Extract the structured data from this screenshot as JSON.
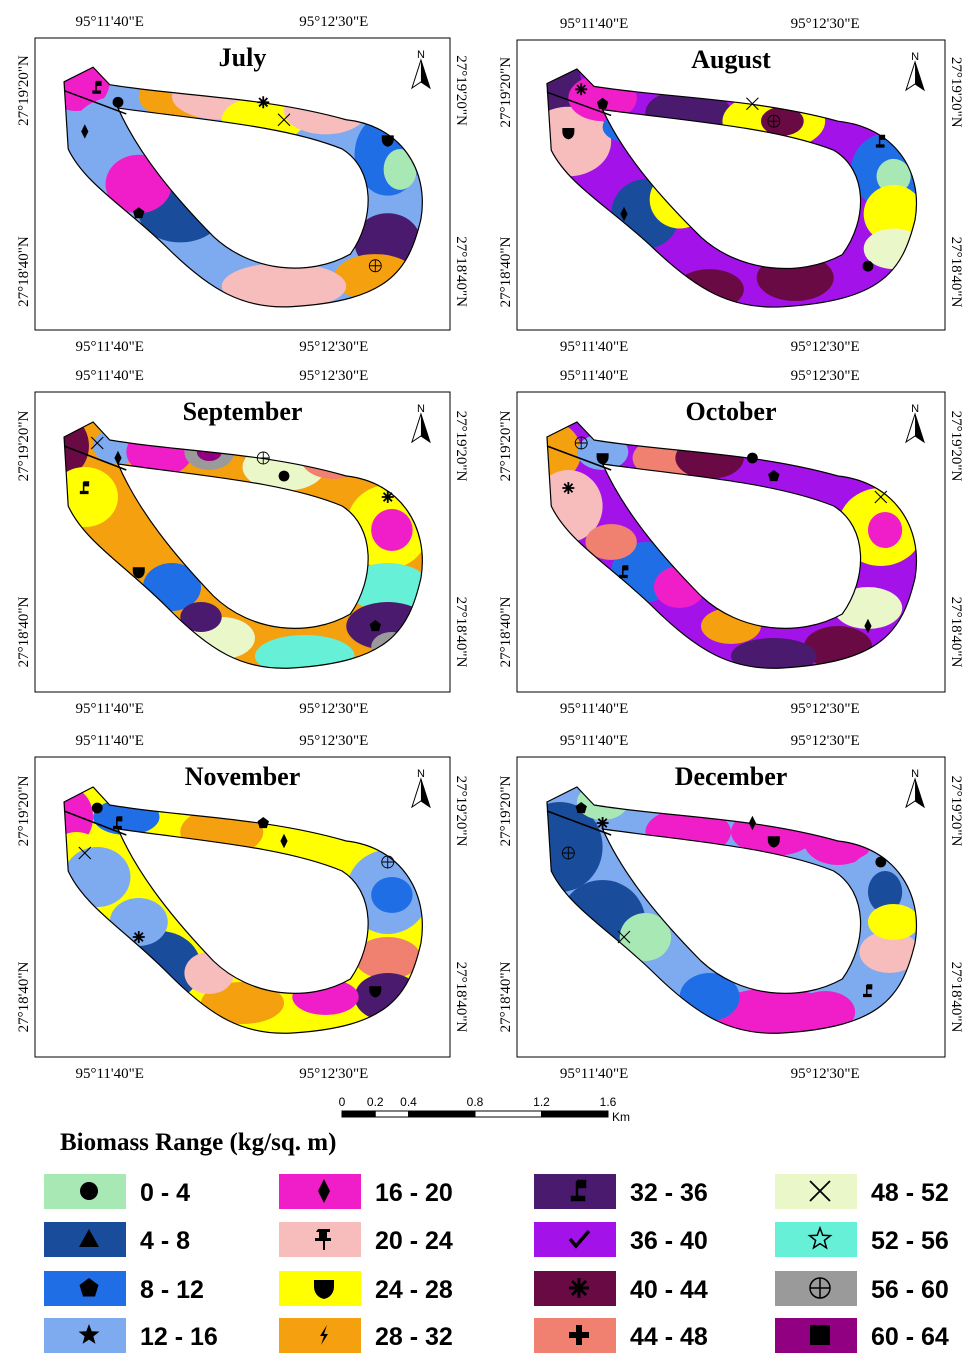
{
  "panels": [
    {
      "title": "July",
      "top_x_labels": [
        "95°11'40\"E",
        "95°12'30\"E"
      ],
      "bottom_x_labels": [
        "95°11'40\"E",
        "95°12'30\"E"
      ],
      "left_y_labels": [
        "27°19'20\"N",
        "27°18'40\"N"
      ],
      "right_y_labels": [
        "27°19'20\"N",
        "27°18'40\"N"
      ],
      "north": "N"
    },
    {
      "title": "August",
      "top_x_labels": [
        "95°11'40\"E",
        "95°12'30\"E"
      ],
      "bottom_x_labels": [
        "95°11'40\"E",
        "95°12'30\"E"
      ],
      "left_y_labels": [
        "27°19'20\"N",
        "27°18'40\"N"
      ],
      "right_y_labels": [
        "27°19'20\"N",
        "27°18'40\"N"
      ],
      "north": "N"
    },
    {
      "title": "September",
      "top_x_labels": [
        "95°11'40\"E",
        "95°12'30\"E"
      ],
      "bottom_x_labels": [
        "95°11'40\"E",
        "95°12'30\"E"
      ],
      "left_y_labels": [
        "27°19'20\"N",
        "27°18'40\"N"
      ],
      "right_y_labels": [
        "27°19'20\"N",
        "27°18'40\"N"
      ],
      "north": "N"
    },
    {
      "title": "October",
      "top_x_labels": [
        "95°11'40\"E",
        "95°12'30\"E"
      ],
      "bottom_x_labels": [
        "95°11'40\"E",
        "95°12'30\"E"
      ],
      "left_y_labels": [
        "27°19'20\"N",
        "27°18'40\"N"
      ],
      "right_y_labels": [
        "27°19'20\"N",
        "27°18'40\"N"
      ],
      "north": "N"
    },
    {
      "title": "November",
      "top_x_labels": [
        "95°11'40\"E",
        "95°12'30\"E"
      ],
      "bottom_x_labels": [
        "95°11'40\"E",
        "95°12'30\"E"
      ],
      "left_y_labels": [
        "27°19'20\"N",
        "27°18'40\"N"
      ],
      "right_y_labels": [
        "27°19'20\"N",
        "27°18'40\"N"
      ],
      "north": "N"
    },
    {
      "title": "December",
      "top_x_labels": [
        "95°11'40\"E",
        "95°12'30\"E"
      ],
      "bottom_x_labels": [
        "95°11'40\"E",
        "95°12'30\"E"
      ],
      "left_y_labels": [
        "27°19'20\"N",
        "27°18'40\"N"
      ],
      "right_y_labels": [
        "27°19'20\"N",
        "27°18'40\"N"
      ],
      "north": "N"
    }
  ],
  "scale_bar": {
    "ticks": [
      0,
      0.2,
      0.4,
      0.8,
      1.2,
      1.6
    ],
    "unit": "Km"
  },
  "legend": {
    "title": "Biomass Range (kg/sq. m)",
    "items": [
      {
        "label": "0 - 4",
        "color": "#a8e8b4"
      },
      {
        "label": "4 - 8",
        "color": "#1a4c9c"
      },
      {
        "label": "8 - 12",
        "color": "#1f6ee6"
      },
      {
        "label": "12 - 16",
        "color": "#7eaaf0"
      },
      {
        "label": "16 - 20",
        "color": "#f01ec8"
      },
      {
        "label": "20 - 24",
        "color": "#f7bcbc"
      },
      {
        "label": "24 - 28",
        "color": "#ffff00"
      },
      {
        "label": "28 - 32",
        "color": "#f5a00f"
      },
      {
        "label": "32 - 36",
        "color": "#4a1a6e"
      },
      {
        "label": "36 - 40",
        "color": "#a412ea"
      },
      {
        "label": "40 - 44",
        "color": "#6a0a44"
      },
      {
        "label": "44 - 48",
        "color": "#f08070"
      },
      {
        "label": "48 - 52",
        "color": "#eaf7c8"
      },
      {
        "label": "52 - 56",
        "color": "#66f0d8"
      },
      {
        "label": "56 - 60",
        "color": "#9a9a9a"
      },
      {
        "label": "60 - 64",
        "color": "#900080"
      }
    ]
  }
}
